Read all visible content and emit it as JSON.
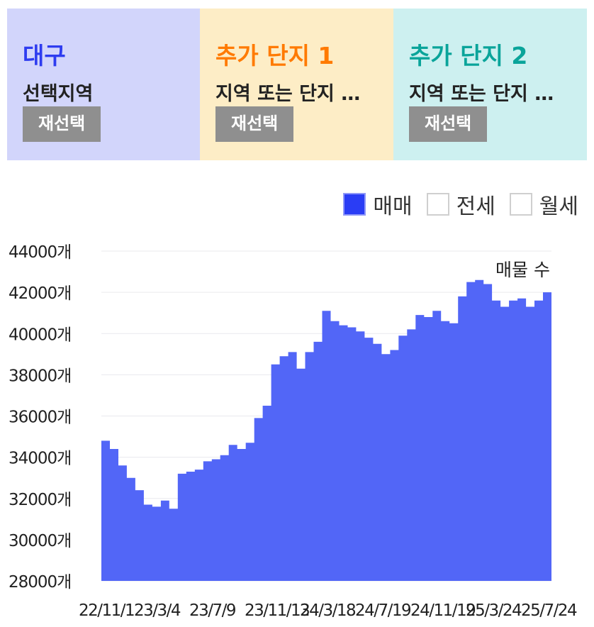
{
  "regions": [
    {
      "title": "대구",
      "subtitle": "선택지역",
      "button": "재선택",
      "title_color": "#2e3cf0"
    },
    {
      "title": "추가 단지 1",
      "subtitle": "지역 또는 단지 …",
      "button": "재선택",
      "title_color": "#ff7a00"
    },
    {
      "title": "추가 단지 2",
      "subtitle": "지역 또는 단지 …",
      "button": "재선택",
      "title_color": "#0aa49a"
    }
  ],
  "legend": [
    {
      "label": "매매",
      "checked": true
    },
    {
      "label": "전세",
      "checked": false
    },
    {
      "label": "월세",
      "checked": false
    }
  ],
  "chart_data": {
    "type": "area",
    "series_label": "매물 수",
    "ylim": [
      28000,
      44000
    ],
    "yticks": [
      "44000개",
      "42000개",
      "40000개",
      "38000개",
      "36000개",
      "34000개",
      "32000개",
      "30000개",
      "28000개"
    ],
    "xticks": [
      "22/11/1",
      "23/3/4",
      "23/7/9",
      "23/11/13",
      "24/3/18",
      "24/7/19",
      "24/11/19",
      "25/3/24",
      "25/7/24"
    ],
    "color": "#5266f7",
    "values": [
      34800,
      34400,
      33600,
      33000,
      32400,
      31700,
      31600,
      31900,
      31500,
      33200,
      33300,
      33400,
      33800,
      33900,
      34100,
      34600,
      34400,
      34700,
      35900,
      36500,
      38500,
      38900,
      39100,
      38300,
      39100,
      39600,
      41100,
      40600,
      40400,
      40300,
      40100,
      39800,
      39500,
      39000,
      39200,
      39900,
      40200,
      40900,
      40800,
      41100,
      40600,
      40500,
      41800,
      42500,
      42600,
      42400,
      41600,
      41300,
      41600,
      41700,
      41300,
      41600,
      42000
    ]
  }
}
